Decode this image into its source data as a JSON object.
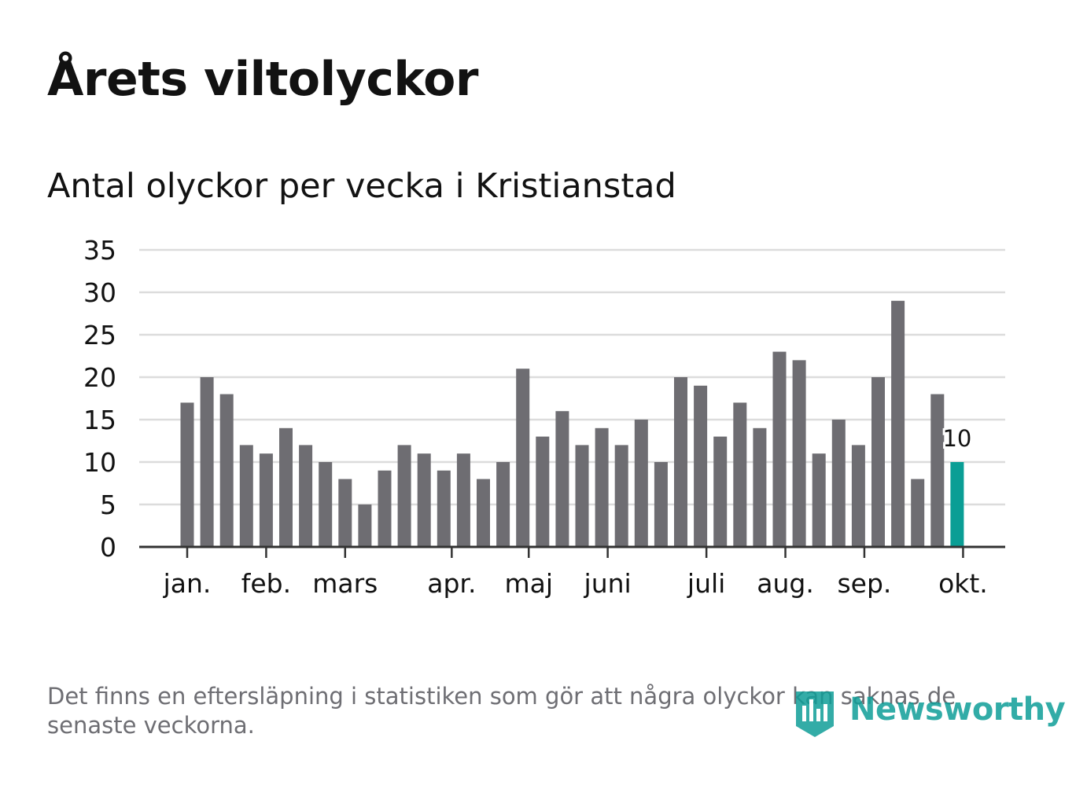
{
  "title": "Årets viltolyckor",
  "subtitle": "Antal olyckor per vecka i Kristianstad",
  "footnote": "Det finns en eftersläpning i statistiken som gör att några olyckor kan saknas de senaste veckorna.",
  "logo": {
    "text": "Newsworthy",
    "icon": "newsworthy-logo-icon"
  },
  "colors": {
    "bar": "#6e6d72",
    "highlight": "#0a9e95",
    "grid": "#dcdcdc",
    "axis": "#333333",
    "text": "#121212",
    "muted": "#6e6e73"
  },
  "chart_data": {
    "type": "bar",
    "title": "Antal olyckor per vecka i Kristianstad",
    "xlabel": "",
    "ylabel": "",
    "ylim": [
      0,
      35
    ],
    "yticks": [
      "0",
      "5",
      "10",
      "15",
      "20",
      "25",
      "30",
      "35"
    ],
    "grid": true,
    "weeks": [
      1,
      2,
      3,
      4,
      5,
      6,
      7,
      8,
      9,
      10,
      11,
      12,
      13,
      14,
      15,
      16,
      17,
      18,
      19,
      20,
      21,
      22,
      23,
      24,
      25,
      26,
      27,
      28,
      29,
      30,
      31,
      32,
      33,
      34,
      35,
      36,
      37,
      38,
      39,
      40
    ],
    "values": [
      17,
      20,
      18,
      12,
      11,
      14,
      12,
      10,
      8,
      5,
      9,
      12,
      11,
      9,
      11,
      8,
      10,
      21,
      13,
      16,
      12,
      14,
      12,
      15,
      10,
      20,
      19,
      13,
      17,
      14,
      23,
      22,
      11,
      15,
      12,
      20,
      29,
      8,
      18,
      10
    ],
    "highlight_index": 39,
    "highlight_label": "10",
    "month_ticks": [
      {
        "label": "jan.",
        "week": 1
      },
      {
        "label": "feb.",
        "week": 5
      },
      {
        "label": "mars",
        "week": 9
      },
      {
        "label": "apr.",
        "week": 14.4
      },
      {
        "label": "maj",
        "week": 18.3
      },
      {
        "label": "juni",
        "week": 22.3
      },
      {
        "label": "juli",
        "week": 27.3
      },
      {
        "label": "aug.",
        "week": 31.3
      },
      {
        "label": "sep.",
        "week": 35.3
      },
      {
        "label": "okt.",
        "week": 40.3
      }
    ]
  }
}
